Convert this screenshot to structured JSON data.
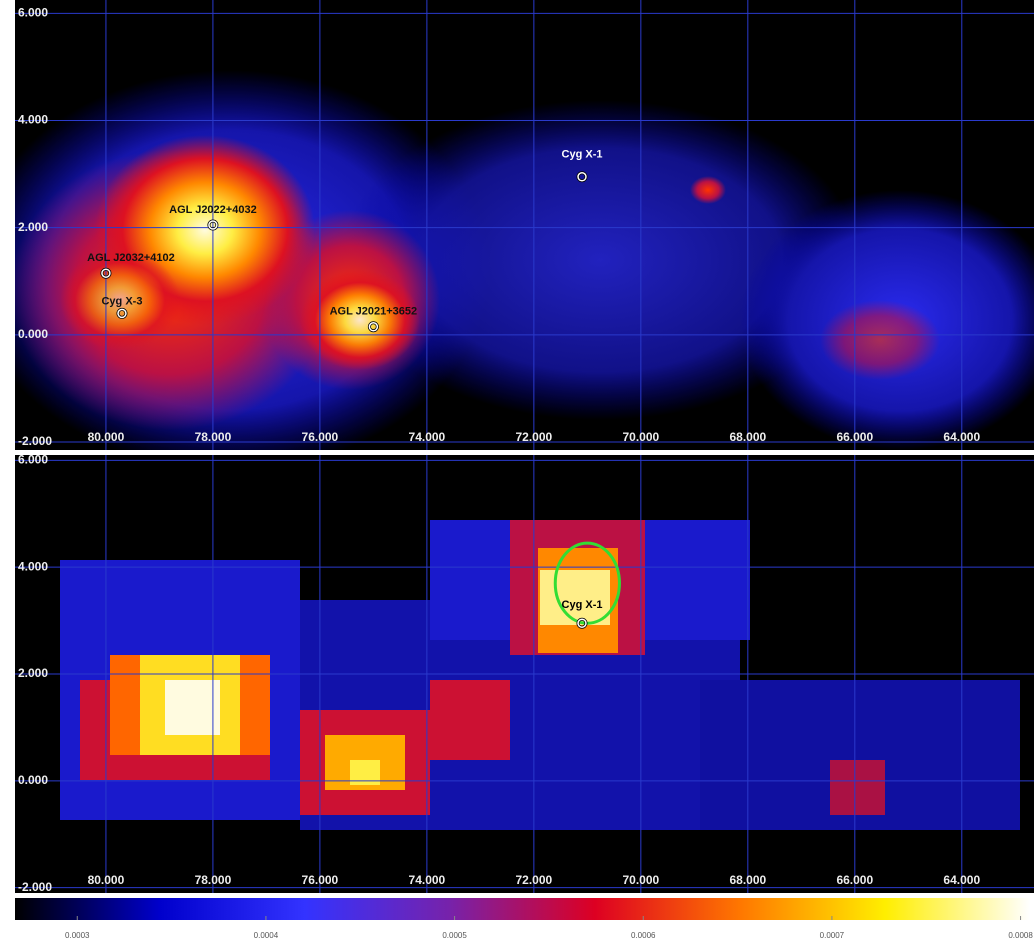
{
  "chart_data": [
    {
      "type": "skymap",
      "xlim": [
        81.7,
        62.65
      ],
      "ylim": [
        -2.15,
        6.25
      ],
      "xticks": [
        {
          "value": 80,
          "label": "80.000"
        },
        {
          "value": 78,
          "label": "78.000"
        },
        {
          "value": 76,
          "label": "76.000"
        },
        {
          "value": 74,
          "label": "74.000"
        },
        {
          "value": 72,
          "label": "72.000"
        },
        {
          "value": 70,
          "label": "70.000"
        },
        {
          "value": 68,
          "label": "68.000"
        },
        {
          "value": 66,
          "label": "66.000"
        },
        {
          "value": 64,
          "label": "64.000"
        }
      ],
      "yticks": [
        {
          "value": 6,
          "label": "6.000"
        },
        {
          "value": 4,
          "label": "4.000"
        },
        {
          "value": 2,
          "label": "2.000"
        },
        {
          "value": 0,
          "label": "0.000"
        },
        {
          "value": -2,
          "label": "-2.000"
        }
      ],
      "grid": true,
      "annotations": [
        {
          "text": "Cyg X-1",
          "x": 71.1,
          "y": 2.95
        },
        {
          "text": "AGL J2022+4032",
          "x": 78.0,
          "y": 2.05
        },
        {
          "text": "AGL J2032+4102",
          "x": 80.0,
          "y": 1.15
        },
        {
          "text": "Cyg X-3",
          "x": 79.7,
          "y": 0.4
        },
        {
          "text": "AGL J2021+3652",
          "x": 75.0,
          "y": 0.15
        }
      ]
    },
    {
      "type": "skymap",
      "xlim": [
        81.7,
        62.65
      ],
      "ylim": [
        -2.1,
        6.1
      ],
      "xticks": [
        {
          "value": 80,
          "label": "80.000"
        },
        {
          "value": 78,
          "label": "78.000"
        },
        {
          "value": 76,
          "label": "76.000"
        },
        {
          "value": 74,
          "label": "74.000"
        },
        {
          "value": 72,
          "label": "72.000"
        },
        {
          "value": 70,
          "label": "70.000"
        },
        {
          "value": 68,
          "label": "68.000"
        },
        {
          "value": 66,
          "label": "66.000"
        },
        {
          "value": 64,
          "label": "64.000"
        }
      ],
      "yticks": [
        {
          "value": 6,
          "label": "6.000"
        },
        {
          "value": 4,
          "label": "4.000"
        },
        {
          "value": 2,
          "label": "2.000"
        },
        {
          "value": 0,
          "label": "0.000"
        },
        {
          "value": -2,
          "label": "-2.000"
        }
      ],
      "grid": true,
      "annotations": [
        {
          "text": "Cyg X-1",
          "x": 71.1,
          "y": 2.95
        }
      ],
      "ellipse": {
        "x": 71.0,
        "y": 3.7,
        "rx": 0.6,
        "ry": 0.75,
        "color": "#33dd33"
      }
    },
    {
      "type": "colorbar",
      "xlim": [
        0.000267,
        0.000805
      ],
      "xticks": [
        0.0003,
        0.0004,
        0.0005,
        0.0006,
        0.0007,
        0.0008
      ],
      "colors": [
        "#000000",
        "#0000cc",
        "#3333ff",
        "#7722aa",
        "#dd0022",
        "#ff7700",
        "#ffee00",
        "#ffffff"
      ]
    }
  ]
}
